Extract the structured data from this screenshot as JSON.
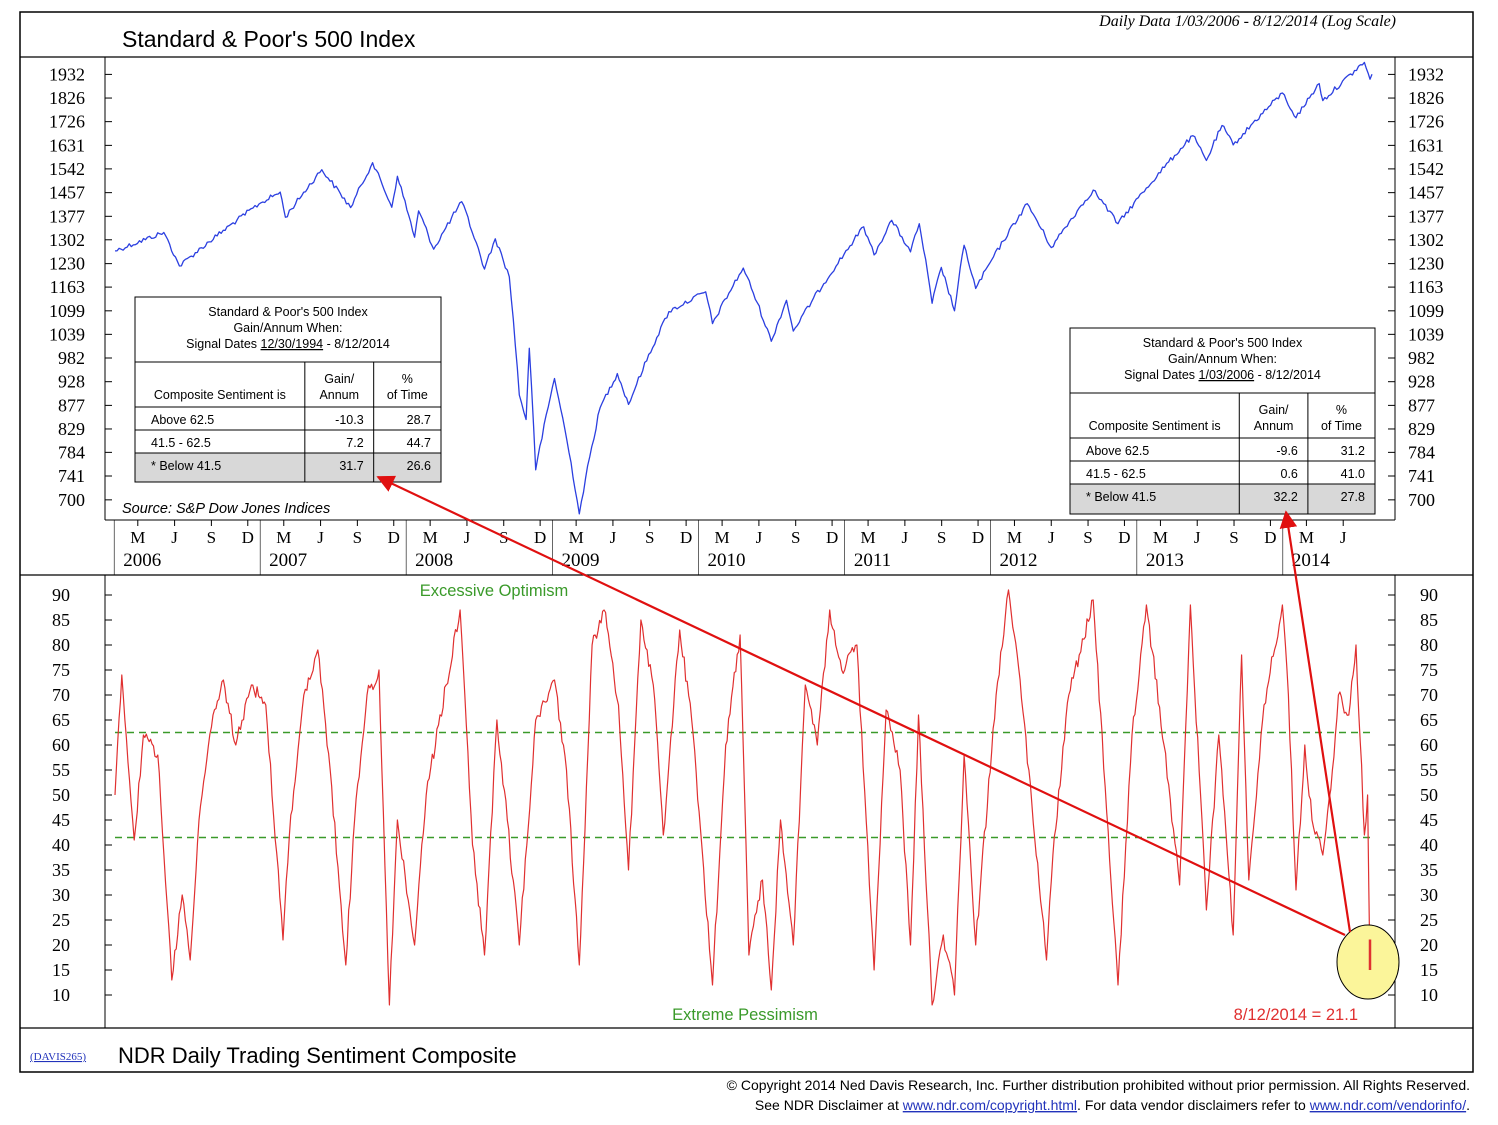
{
  "chart_data": [
    {
      "type": "line",
      "title": "Standard & Poor's 500 Index",
      "subtitle": "Daily Data 1/03/2006 - 8/12/2014 (Log Scale)",
      "scale": "log",
      "ylim": [
        680,
        1990
      ],
      "xlim": [
        "2006-01-03",
        "2014-08-12"
      ],
      "yticks": [
        1932,
        1826,
        1726,
        1631,
        1542,
        1457,
        1377,
        1302,
        1230,
        1163,
        1099,
        1039,
        982,
        928,
        877,
        829,
        784,
        741,
        700
      ],
      "source": "Source: S&P Dow Jones Indices",
      "series": [
        {
          "color": "#2b3fe0",
          "points": [
            [
              "2006-01-03",
              1268
            ],
            [
              "2006-05-05",
              1325
            ],
            [
              "2006-06-13",
              1223
            ],
            [
              "2006-12-29",
              1418
            ],
            [
              "2007-02-20",
              1459
            ],
            [
              "2007-03-05",
              1374
            ],
            [
              "2007-06-04",
              1539
            ],
            [
              "2007-08-15",
              1406
            ],
            [
              "2007-10-09",
              1565
            ],
            [
              "2007-11-26",
              1407
            ],
            [
              "2007-12-10",
              1515
            ],
            [
              "2008-01-22",
              1310
            ],
            [
              "2008-02-01",
              1395
            ],
            [
              "2008-03-10",
              1273
            ],
            [
              "2008-05-19",
              1426
            ],
            [
              "2008-07-15",
              1214
            ],
            [
              "2008-08-11",
              1305
            ],
            [
              "2008-09-15",
              1192
            ],
            [
              "2008-10-10",
              899
            ],
            [
              "2008-10-27",
              848
            ],
            [
              "2008-11-04",
              1005
            ],
            [
              "2008-11-20",
              752
            ],
            [
              "2009-01-06",
              935
            ],
            [
              "2009-03-09",
              677
            ],
            [
              "2009-04-30",
              872
            ],
            [
              "2009-06-12",
              946
            ],
            [
              "2009-07-10",
              879
            ],
            [
              "2009-10-19",
              1097
            ],
            [
              "2010-01-19",
              1150
            ],
            [
              "2010-02-05",
              1066
            ],
            [
              "2010-04-23",
              1217
            ],
            [
              "2010-07-02",
              1022
            ],
            [
              "2010-08-09",
              1127
            ],
            [
              "2010-08-26",
              1047
            ],
            [
              "2010-12-31",
              1258
            ],
            [
              "2011-02-18",
              1343
            ],
            [
              "2011-03-16",
              1256
            ],
            [
              "2011-04-29",
              1364
            ],
            [
              "2011-06-15",
              1265
            ],
            [
              "2011-07-07",
              1353
            ],
            [
              "2011-08-08",
              1119
            ],
            [
              "2011-08-31",
              1219
            ],
            [
              "2011-10-03",
              1099
            ],
            [
              "2011-10-27",
              1285
            ],
            [
              "2011-11-25",
              1159
            ],
            [
              "2012-04-02",
              1419
            ],
            [
              "2012-06-01",
              1278
            ],
            [
              "2012-09-14",
              1466
            ],
            [
              "2012-11-15",
              1353
            ],
            [
              "2013-05-21",
              1669
            ],
            [
              "2013-06-24",
              1573
            ],
            [
              "2013-08-02",
              1710
            ],
            [
              "2013-08-30",
              1633
            ],
            [
              "2013-12-31",
              1848
            ],
            [
              "2014-02-03",
              1742
            ],
            [
              "2014-04-02",
              1890
            ],
            [
              "2014-04-11",
              1815
            ],
            [
              "2014-07-24",
              1988
            ],
            [
              "2014-08-07",
              1910
            ],
            [
              "2014-08-12",
              1933
            ]
          ]
        }
      ],
      "tables": [
        {
          "title_lines": [
            "Standard & Poor's 500 Index",
            "Gain/Annum When:"
          ],
          "signal_prefix": "Signal Dates",
          "signal_start": "12/30/1994",
          "signal_end": " - 8/12/2014",
          "headers": [
            "Composite Sentiment is",
            "Gain/ Annum",
            "% of Time"
          ],
          "rows": [
            [
              "Above 62.5",
              "-10.3",
              "28.7"
            ],
            [
              "41.5 - 62.5",
              "7.2",
              "44.7"
            ],
            [
              "Below 41.5",
              "31.7",
              "26.6"
            ]
          ],
          "highlight_row": 2,
          "star": "*"
        },
        {
          "title_lines": [
            "Standard & Poor's 500 Index",
            "Gain/Annum When:"
          ],
          "signal_prefix": "Signal Dates",
          "signal_start": "1/03/2006",
          "signal_end": " - 8/12/2014",
          "headers": [
            "Composite Sentiment is",
            "Gain/ Annum",
            "% of Time"
          ],
          "rows": [
            [
              "Above 62.5",
              "-9.6",
              "31.2"
            ],
            [
              "41.5 - 62.5",
              "0.6",
              "41.0"
            ],
            [
              "Below 41.5",
              "32.2",
              "27.8"
            ]
          ],
          "highlight_row": 2,
          "star": "*"
        }
      ]
    },
    {
      "type": "line",
      "title": "NDR Daily Trading Sentiment Composite",
      "code": "(DAVIS265)",
      "ylim": [
        5,
        93
      ],
      "yticks": [
        90,
        85,
        80,
        75,
        70,
        65,
        60,
        55,
        50,
        45,
        40,
        35,
        30,
        25,
        20,
        15,
        10
      ],
      "thresholds": [
        62.5,
        41.5
      ],
      "threshold_color": "#3a9a2a",
      "label_top": "Excessive Optimism",
      "label_bottom": "Extreme Pessimism",
      "last_value_label": "8/12/2014 = 21.1",
      "last_value": 21.1,
      "series": [
        {
          "color": "#e03030",
          "points": [
            [
              "2006-01-03",
              50
            ],
            [
              "2006-01-20",
              74
            ],
            [
              "2006-02-20",
              41
            ],
            [
              "2006-03-15",
              62
            ],
            [
              "2006-04-20",
              58
            ],
            [
              "2006-05-25",
              13
            ],
            [
              "2006-06-20",
              30
            ],
            [
              "2006-07-10",
              17
            ],
            [
              "2006-08-01",
              45
            ],
            [
              "2006-09-05",
              66
            ],
            [
              "2006-10-01",
              73
            ],
            [
              "2006-11-01",
              60
            ],
            [
              "2006-12-10",
              72
            ],
            [
              "2007-01-15",
              68
            ],
            [
              "2007-02-27",
              21
            ],
            [
              "2007-03-15",
              42
            ],
            [
              "2007-04-20",
              70
            ],
            [
              "2007-05-25",
              79
            ],
            [
              "2007-06-25",
              55
            ],
            [
              "2007-08-03",
              16
            ],
            [
              "2007-08-25",
              45
            ],
            [
              "2007-09-25",
              70
            ],
            [
              "2007-10-25",
              75
            ],
            [
              "2007-11-20",
              8
            ],
            [
              "2007-12-10",
              45
            ],
            [
              "2008-01-22",
              20
            ],
            [
              "2008-02-20",
              50
            ],
            [
              "2008-04-10",
              72
            ],
            [
              "2008-05-15",
              87
            ],
            [
              "2008-06-15",
              40
            ],
            [
              "2008-07-15",
              18
            ],
            [
              "2008-08-15",
              65
            ],
            [
              "2008-09-10",
              45
            ],
            [
              "2008-10-10",
              20
            ],
            [
              "2008-11-20",
              65
            ],
            [
              "2009-01-06",
              73
            ],
            [
              "2009-02-05",
              55
            ],
            [
              "2009-03-09",
              16
            ],
            [
              "2009-04-10",
              80
            ],
            [
              "2009-05-10",
              87
            ],
            [
              "2009-06-15",
              68
            ],
            [
              "2009-07-10",
              35
            ],
            [
              "2009-08-10",
              85
            ],
            [
              "2009-09-10",
              72
            ],
            [
              "2009-10-05",
              42
            ],
            [
              "2009-11-15",
              83
            ],
            [
              "2009-12-15",
              65
            ],
            [
              "2010-02-05",
              12
            ],
            [
              "2010-03-10",
              60
            ],
            [
              "2010-04-15",
              82
            ],
            [
              "2010-05-07",
              18
            ],
            [
              "2010-06-10",
              33
            ],
            [
              "2010-07-02",
              11
            ],
            [
              "2010-07-25",
              45
            ],
            [
              "2010-08-26",
              20
            ],
            [
              "2010-09-25",
              72
            ],
            [
              "2010-10-25",
              60
            ],
            [
              "2010-11-25",
              87
            ],
            [
              "2010-12-25",
              75
            ],
            [
              "2011-02-01",
              80
            ],
            [
              "2011-03-16",
              15
            ],
            [
              "2011-04-15",
              67
            ],
            [
              "2011-05-20",
              55
            ],
            [
              "2011-06-15",
              20
            ],
            [
              "2011-07-05",
              66
            ],
            [
              "2011-08-08",
              8
            ],
            [
              "2011-09-05",
              22
            ],
            [
              "2011-10-03",
              10
            ],
            [
              "2011-10-27",
              58
            ],
            [
              "2011-11-25",
              20
            ],
            [
              "2012-01-15",
              70
            ],
            [
              "2012-02-15",
              91
            ],
            [
              "2012-03-15",
              73
            ],
            [
              "2012-05-20",
              17
            ],
            [
              "2012-06-05",
              38
            ],
            [
              "2012-07-15",
              70
            ],
            [
              "2012-08-10",
              78
            ],
            [
              "2012-09-14",
              89
            ],
            [
              "2012-10-25",
              37
            ],
            [
              "2012-11-15",
              12
            ],
            [
              "2012-12-20",
              62
            ],
            [
              "2013-01-25",
              88
            ],
            [
              "2013-03-10",
              60
            ],
            [
              "2013-04-18",
              32
            ],
            [
              "2013-05-15",
              88
            ],
            [
              "2013-06-24",
              27
            ],
            [
              "2013-07-25",
              62
            ],
            [
              "2013-08-30",
              22
            ],
            [
              "2013-09-20",
              78
            ],
            [
              "2013-10-08",
              33
            ],
            [
              "2013-11-15",
              68
            ],
            [
              "2013-12-31",
              88
            ],
            [
              "2014-01-15",
              70
            ],
            [
              "2014-02-03",
              31
            ],
            [
              "2014-02-25",
              60
            ],
            [
              "2014-03-15",
              45
            ],
            [
              "2014-04-11",
              38
            ],
            [
              "2014-05-05",
              55
            ],
            [
              "2014-05-20",
              70
            ],
            [
              "2014-06-15",
              66
            ],
            [
              "2014-07-03",
              80
            ],
            [
              "2014-07-24",
              42
            ],
            [
              "2014-08-01",
              50
            ],
            [
              "2014-08-07",
              15
            ],
            [
              "2014-08-12",
              21.1
            ]
          ]
        }
      ]
    }
  ],
  "xaxis": {
    "month_labels": [
      "M",
      "J",
      "S",
      "D",
      "M",
      "J",
      "S",
      "D",
      "M",
      "J",
      "S",
      "D",
      "M",
      "J",
      "S",
      "D",
      "M",
      "J",
      "S",
      "D",
      "M",
      "J",
      "S",
      "D",
      "M",
      "J",
      "S",
      "D",
      "M",
      "J",
      "S",
      "D",
      "M",
      "J"
    ],
    "year_labels": [
      "2006",
      "2007",
      "2008",
      "2009",
      "2010",
      "2011",
      "2012",
      "2013",
      "2014"
    ]
  },
  "footer": {
    "copyright": "© Copyright 2014 Ned Davis Research, Inc.  Further distribution prohibited without prior permission.  All Rights Reserved.",
    "disclaimer_pre": "See NDR Disclaimer at ",
    "disclaimer_link1": "www.ndr.com/copyright.html",
    "disclaimer_mid": ". For data vendor disclaimers refer to ",
    "disclaimer_link2": "www.ndr.com/vendorinfo/",
    "disclaimer_post": "."
  },
  "colors": {
    "price_line": "#2b3fe0",
    "sentiment_line": "#e03030",
    "threshold": "#3a9a2a",
    "annotation_arrow": "#e01010",
    "highlight_circle": "#fbf59a",
    "link": "#2233bb"
  }
}
